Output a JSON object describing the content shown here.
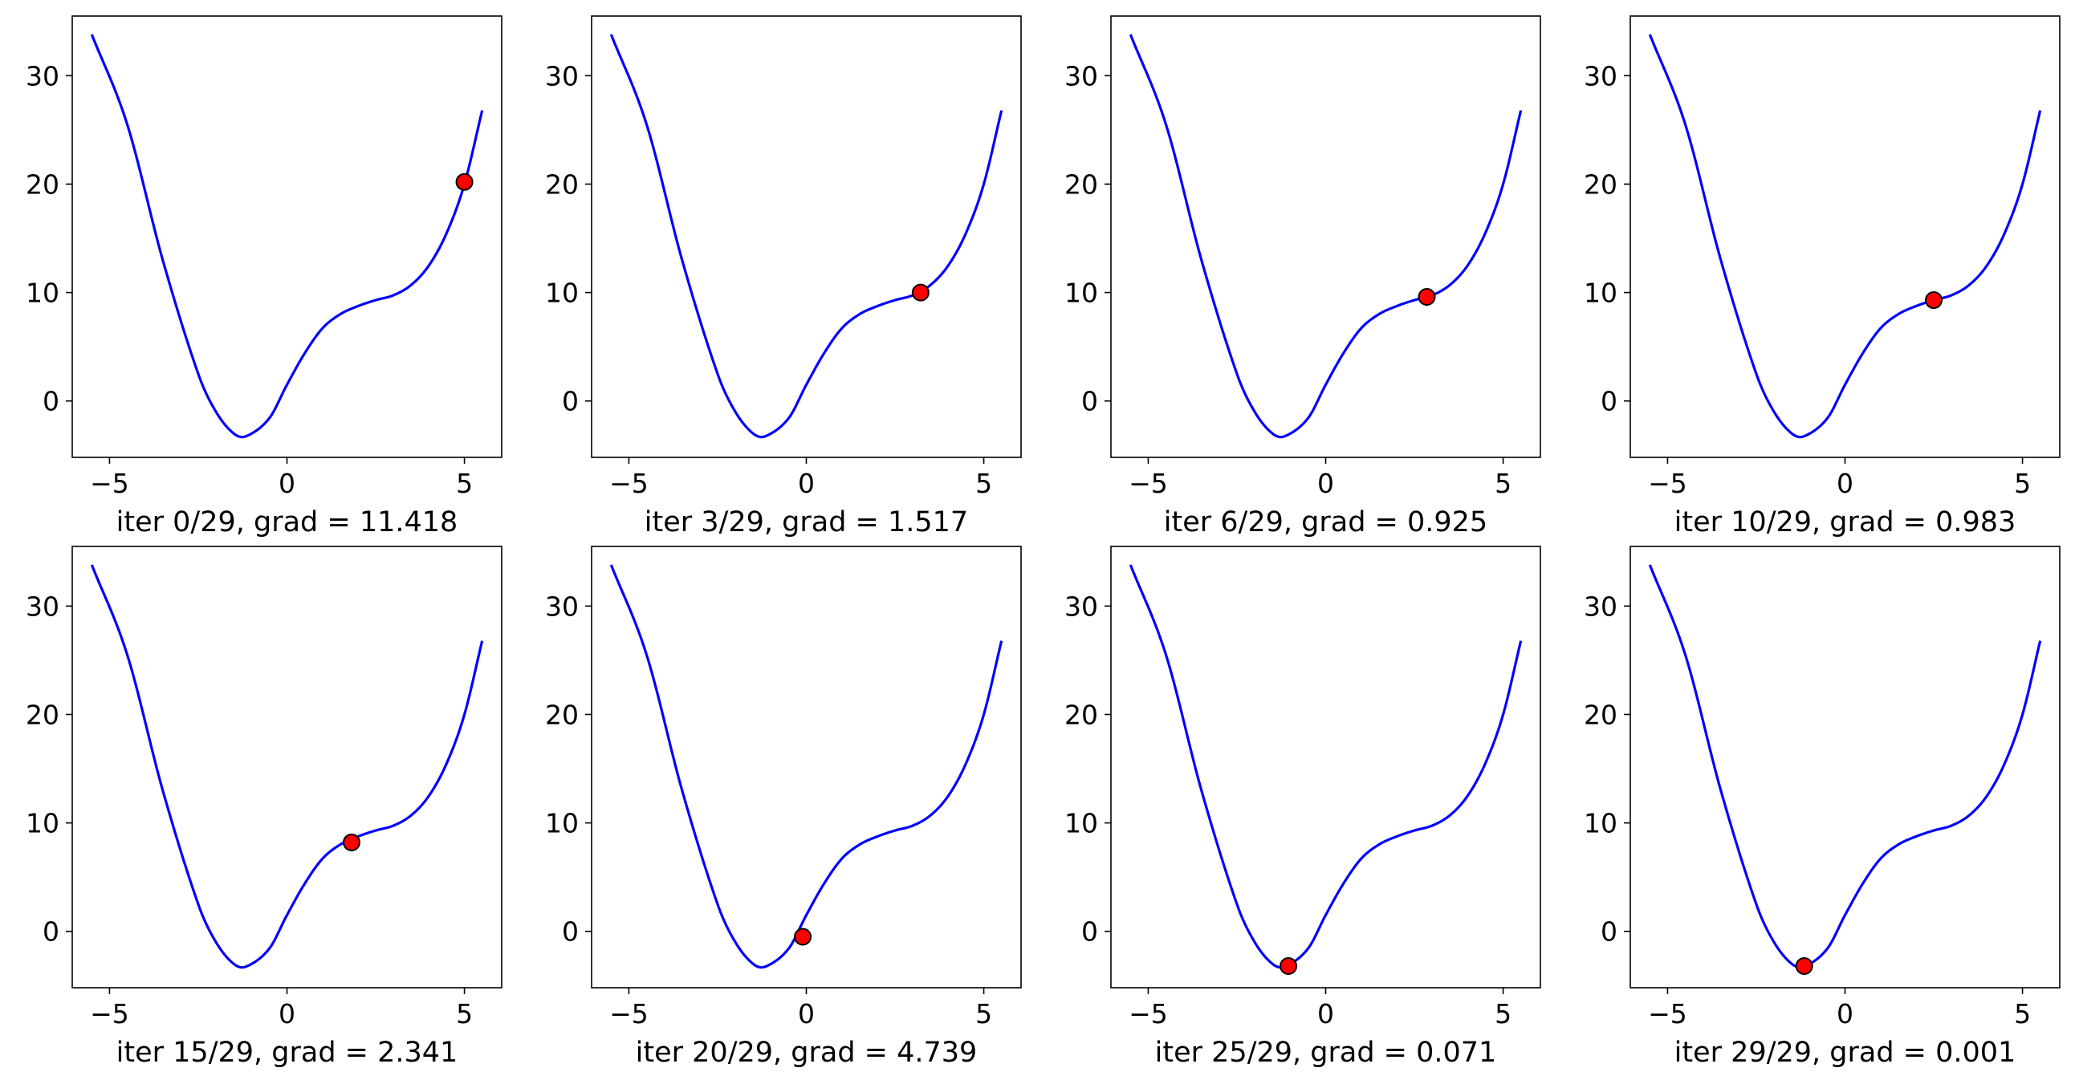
{
  "figure": {
    "rows": 2,
    "cols": 4,
    "curve_color": "#0000ff",
    "marker_fill": "#ff0000",
    "marker_edge": "#000000"
  },
  "chart_data": [
    {
      "type": "line",
      "title": "iter 0/29, grad = 11.418",
      "x_range": [
        -5.5,
        5.5
      ],
      "xlim": [
        -6.05,
        6.05
      ],
      "ylim": [
        -5.2,
        35.5
      ],
      "xticks": [
        -5,
        0,
        5
      ],
      "xtick_labels": [
        "−5",
        "0",
        "5"
      ],
      "yticks": [
        0,
        10,
        20,
        30
      ],
      "ytick_labels": [
        "0",
        "10",
        "20",
        "30"
      ],
      "grid": false,
      "current_point": {
        "x": 5.0,
        "y": 20.2
      }
    },
    {
      "type": "line",
      "title": "iter 3/29, grad = 1.517",
      "x_range": [
        -5.5,
        5.5
      ],
      "xlim": [
        -6.05,
        6.05
      ],
      "ylim": [
        -5.2,
        35.5
      ],
      "xticks": [
        -5,
        0,
        5
      ],
      "xtick_labels": [
        "−5",
        "0",
        "5"
      ],
      "yticks": [
        0,
        10,
        20,
        30
      ],
      "ytick_labels": [
        "0",
        "10",
        "20",
        "30"
      ],
      "grid": false,
      "current_point": {
        "x": 3.22,
        "y": 10.0
      }
    },
    {
      "type": "line",
      "title": "iter 6/29, grad = 0.925",
      "x_range": [
        -5.5,
        5.5
      ],
      "xlim": [
        -6.05,
        6.05
      ],
      "ylim": [
        -5.2,
        35.5
      ],
      "xticks": [
        -5,
        0,
        5
      ],
      "xtick_labels": [
        "−5",
        "0",
        "5"
      ],
      "yticks": [
        0,
        10,
        20,
        30
      ],
      "ytick_labels": [
        "0",
        "10",
        "20",
        "30"
      ],
      "grid": false,
      "current_point": {
        "x": 2.85,
        "y": 9.6
      }
    },
    {
      "type": "line",
      "title": "iter 10/29, grad = 0.983",
      "x_range": [
        -5.5,
        5.5
      ],
      "xlim": [
        -6.05,
        6.05
      ],
      "ylim": [
        -5.2,
        35.5
      ],
      "xticks": [
        -5,
        0,
        5
      ],
      "xtick_labels": [
        "−5",
        "0",
        "5"
      ],
      "yticks": [
        0,
        10,
        20,
        30
      ],
      "ytick_labels": [
        "0",
        "10",
        "20",
        "30"
      ],
      "grid": false,
      "current_point": {
        "x": 2.5,
        "y": 9.3
      }
    },
    {
      "type": "line",
      "title": "iter 15/29, grad = 2.341",
      "x_range": [
        -5.5,
        5.5
      ],
      "xlim": [
        -6.05,
        6.05
      ],
      "ylim": [
        -5.2,
        35.5
      ],
      "xticks": [
        -5,
        0,
        5
      ],
      "xtick_labels": [
        "−5",
        "0",
        "5"
      ],
      "yticks": [
        0,
        10,
        20,
        30
      ],
      "ytick_labels": [
        "0",
        "10",
        "20",
        "30"
      ],
      "grid": false,
      "current_point": {
        "x": 1.82,
        "y": 8.2
      }
    },
    {
      "type": "line",
      "title": "iter 20/29, grad = 4.739",
      "x_range": [
        -5.5,
        5.5
      ],
      "xlim": [
        -6.05,
        6.05
      ],
      "ylim": [
        -5.2,
        35.5
      ],
      "xticks": [
        -5,
        0,
        5
      ],
      "xtick_labels": [
        "−5",
        "0",
        "5"
      ],
      "yticks": [
        0,
        10,
        20,
        30
      ],
      "ytick_labels": [
        "0",
        "10",
        "20",
        "30"
      ],
      "grid": false,
      "current_point": {
        "x": -0.1,
        "y": -0.5
      }
    },
    {
      "type": "line",
      "title": "iter 25/29, grad = 0.071",
      "x_range": [
        -5.5,
        5.5
      ],
      "xlim": [
        -6.05,
        6.05
      ],
      "ylim": [
        -5.2,
        35.5
      ],
      "xticks": [
        -5,
        0,
        5
      ],
      "xtick_labels": [
        "−5",
        "0",
        "5"
      ],
      "yticks": [
        0,
        10,
        20,
        30
      ],
      "ytick_labels": [
        "0",
        "10",
        "20",
        "30"
      ],
      "grid": false,
      "current_point": {
        "x": -1.05,
        "y": -3.2
      }
    },
    {
      "type": "line",
      "title": "iter 29/29, grad = 0.001",
      "x_range": [
        -5.5,
        5.5
      ],
      "xlim": [
        -6.05,
        6.05
      ],
      "ylim": [
        -5.2,
        35.5
      ],
      "xticks": [
        -5,
        0,
        5
      ],
      "xtick_labels": [
        "−5",
        "0",
        "5"
      ],
      "yticks": [
        0,
        10,
        20,
        30
      ],
      "ytick_labels": [
        "0",
        "10",
        "20",
        "30"
      ],
      "grid": false,
      "current_point": {
        "x": -1.15,
        "y": -3.2
      }
    }
  ]
}
